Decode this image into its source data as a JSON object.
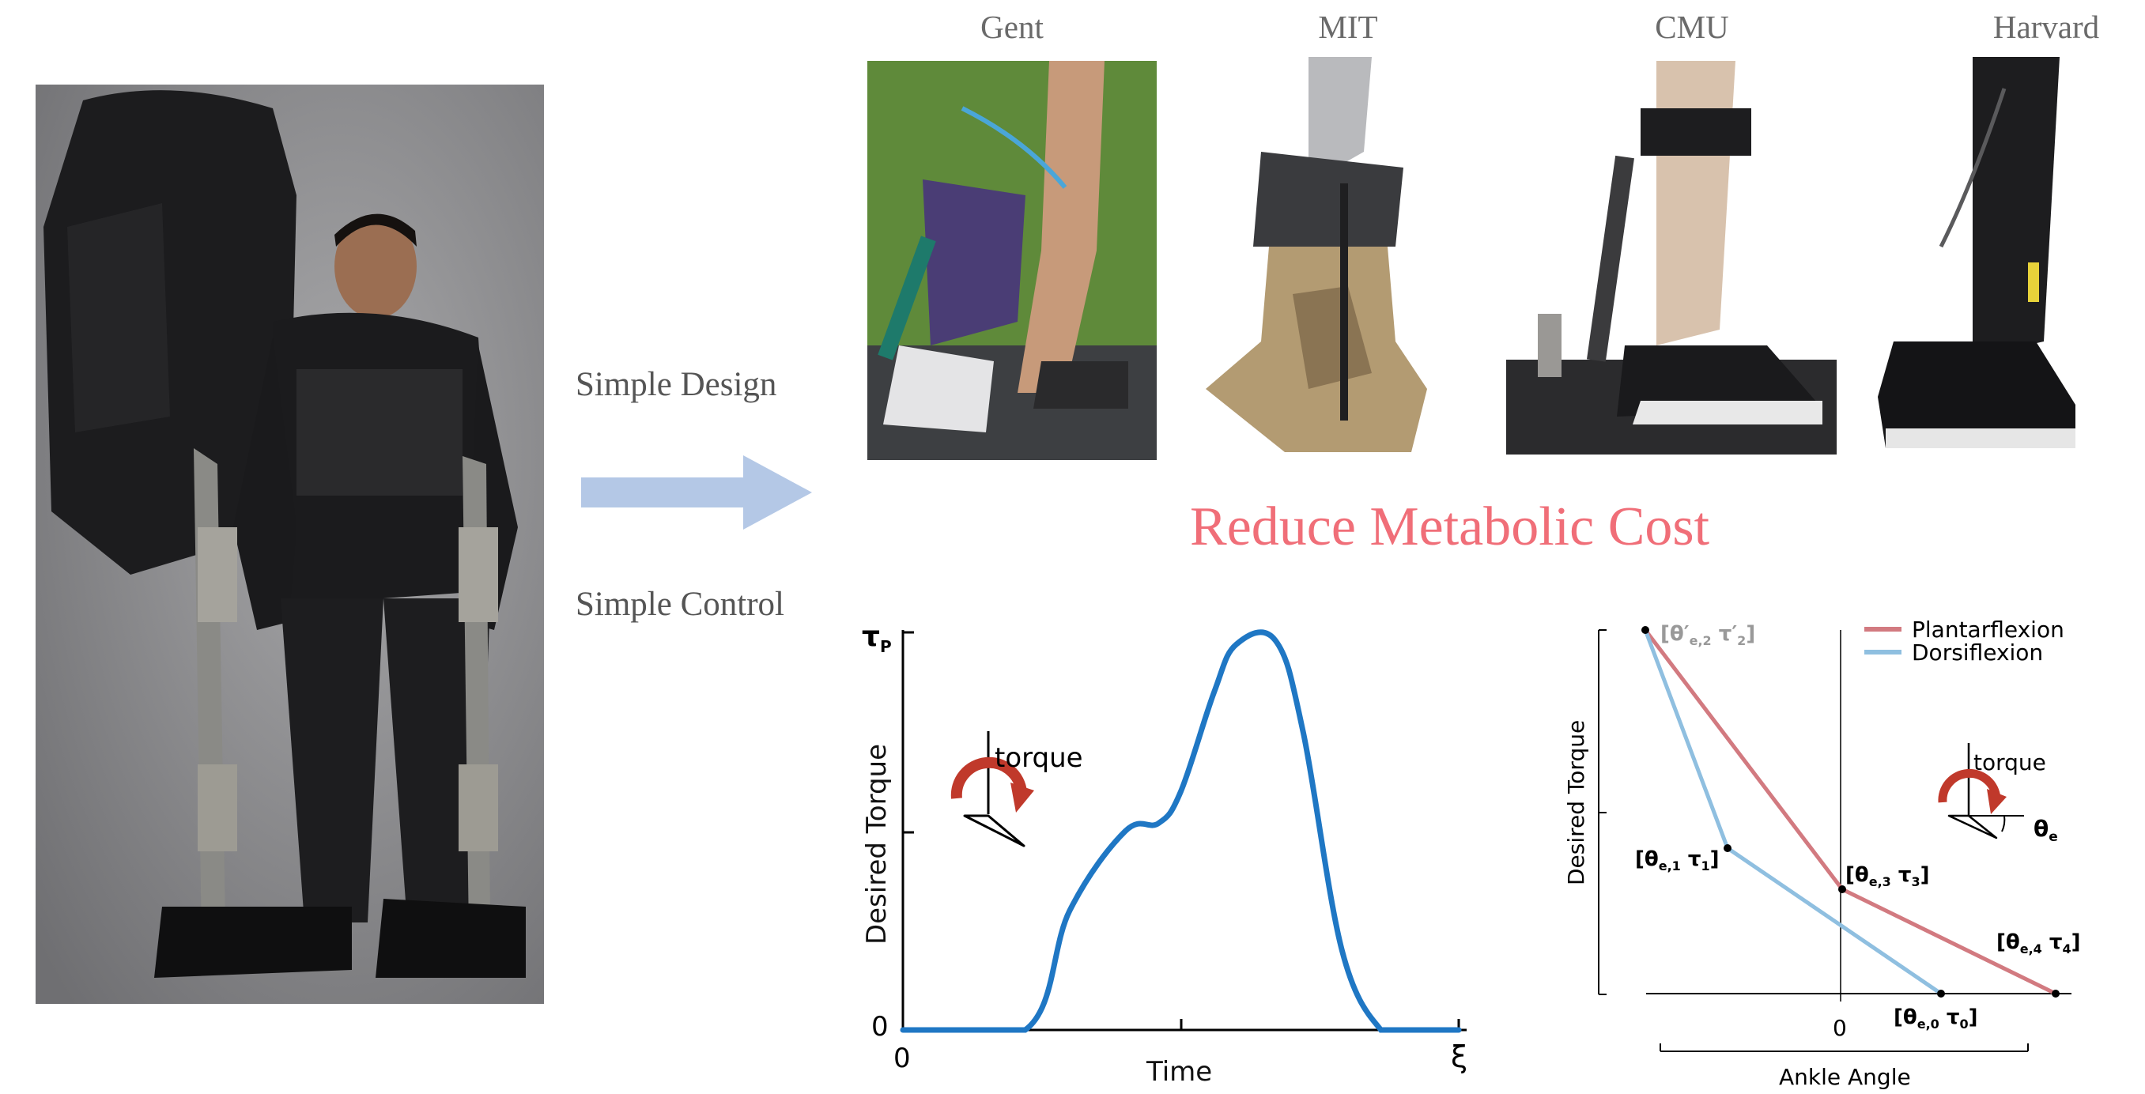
{
  "labels": {
    "simple_design": "Simple Design",
    "simple_control": "Simple Control",
    "headline": "Reduce Metabolic Cost"
  },
  "institutions": [
    "Gent",
    "MIT",
    "CMU",
    "Harvard"
  ],
  "colors": {
    "arrow": "#b4c8e6",
    "headline": "#f06e78",
    "torque_curve": "#1f77c4",
    "plantarflexion": "#d27a80",
    "dorsiflexion": "#8fbfe0",
    "torque_icon": "#c0392b"
  },
  "torque_profile": {
    "y_label": "Desired Torque",
    "x_label": "Time",
    "y_max_label": "τ",
    "y_max_sub": "P",
    "y_zero_label": "0",
    "x_zero_label": "0",
    "x_end_label": "ξ",
    "icon_label": "torque",
    "chart_data": {
      "type": "line",
      "x": [
        0,
        0.22,
        0.3,
        0.4,
        0.46,
        0.5,
        0.56,
        0.6,
        0.67,
        0.72,
        0.79,
        0.86,
        0.9,
        1.0
      ],
      "values": [
        0,
        0,
        0.3,
        0.5,
        0.52,
        0.6,
        0.85,
        0.97,
        0.98,
        0.75,
        0.2,
        0,
        0,
        0
      ],
      "xlim": [
        0,
        1
      ],
      "ylim": [
        0,
        1
      ]
    }
  },
  "angle_torque": {
    "y_label": "Desired Torque",
    "x_label": "Ankle Angle",
    "x_zero_label": "0",
    "icon_label": "torque",
    "icon_angle_label": "θ",
    "icon_angle_sub": "e",
    "legend": {
      "plantarflexion": "Plantarflexion",
      "dorsiflexion": "Dorsiflexion"
    },
    "points": {
      "p2": {
        "text": "[θ′",
        "sub": "e,2",
        "text2": " τ′",
        "sub2": "2",
        "close": "]"
      },
      "p1": {
        "text": "[θ",
        "sub": "e,1",
        "text2": "  τ",
        "sub2": "1",
        "close": "]"
      },
      "p3": {
        "text": "[θ",
        "sub": "e,3",
        "text2": " τ",
        "sub2": "3",
        "close": "]"
      },
      "p4": {
        "text": "[θ",
        "sub": "e,4",
        "text2": " τ",
        "sub2": "4",
        "close": "]"
      },
      "p0": {
        "text": "[θ",
        "sub": "e,0",
        "text2": "  τ",
        "sub2": "0",
        "close": "]"
      }
    }
  }
}
